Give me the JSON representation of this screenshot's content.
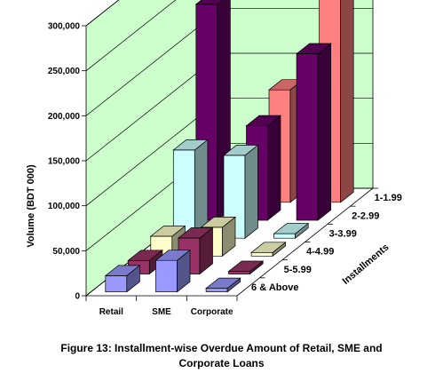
{
  "chart_data": {
    "type": "bar",
    "subtype": "3d-column",
    "ylabel": "Volume (BDT 000)",
    "zlabel": "Installments",
    "ylim": [
      0,
      300000
    ],
    "yticks": [
      "0",
      "50,000",
      "100,000",
      "150,000",
      "200,000",
      "250,000",
      "300,000"
    ],
    "grid": true,
    "categories": [
      "Retail",
      "SME",
      "Corporate"
    ],
    "series": [
      {
        "name": "1-1.99",
        "color": "#FF8080",
        "values": [
          0,
          125000,
          250000
        ]
      },
      {
        "name": "2-2.99",
        "color": "#660066",
        "values": [
          240000,
          105000,
          185000
        ]
      },
      {
        "name": "3-3.99",
        "color": "#CCFFFF",
        "values": [
          98000,
          92000,
          5000
        ]
      },
      {
        "name": "4-4.99",
        "color": "#FFFFCC",
        "values": [
          22000,
          32000,
          4000
        ]
      },
      {
        "name": "5-5.99",
        "color": "#993366",
        "values": [
          15000,
          40000,
          3000
        ]
      },
      {
        "name": "6 & Above",
        "color": "#9999FF",
        "values": [
          18000,
          35000,
          4000
        ]
      }
    ]
  },
  "caption": {
    "line1": "Figure 13: Installment-wise Overdue Amount of Retail, SME and",
    "line2": "Corporate Loans"
  }
}
